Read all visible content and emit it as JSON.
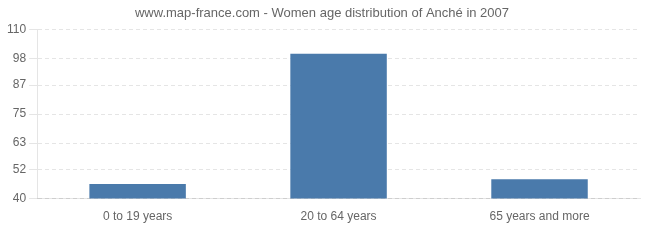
{
  "chart_data": {
    "type": "bar",
    "title": "www.map-france.com - Women age distribution of Anché in 2007",
    "categories": [
      "0 to 19 years",
      "20 to 64 years",
      "65 years and more"
    ],
    "values": [
      46,
      100,
      48
    ],
    "color": "#4a7aab",
    "ylim": [
      40,
      110
    ],
    "yticks": [
      40,
      52,
      63,
      75,
      87,
      98,
      110
    ],
    "grid": true
  }
}
